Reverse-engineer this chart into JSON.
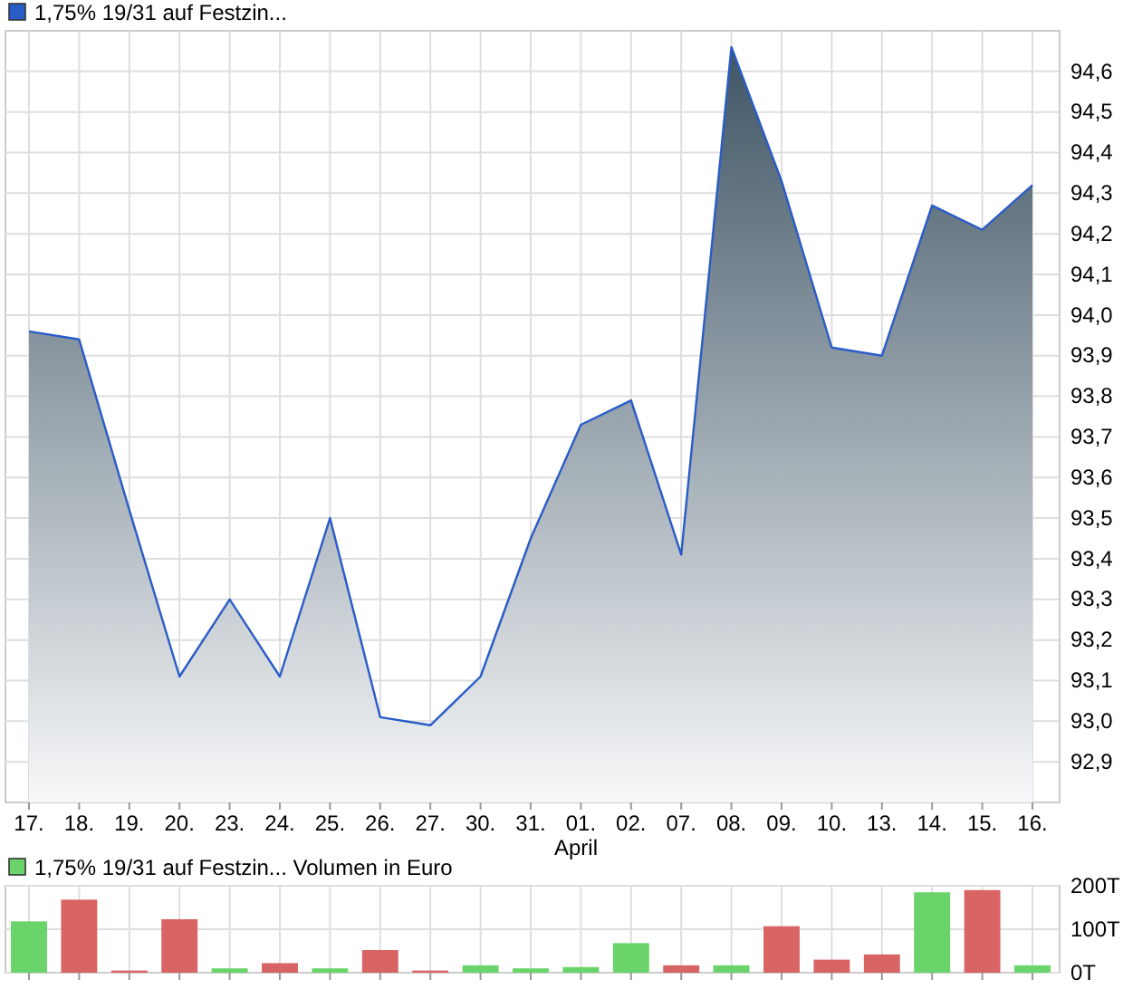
{
  "chart_data": [
    {
      "type": "area",
      "categories": [
        "17.",
        "18.",
        "19.",
        "20.",
        "23.",
        "24.",
        "25.",
        "26.",
        "27.",
        "30.",
        "31.",
        "01.",
        "02.",
        "07.",
        "08.",
        "09.",
        "10.",
        "13.",
        "14.",
        "15.",
        "16."
      ],
      "series": [
        {
          "name": "1,75% 19/31 auf Festzin...",
          "color": "#2a5cc8",
          "values": [
            93.96,
            93.94,
            93.52,
            93.11,
            93.3,
            93.11,
            93.5,
            93.01,
            92.99,
            93.11,
            93.45,
            93.73,
            93.79,
            93.41,
            94.66,
            94.33,
            93.92,
            93.9,
            94.27,
            94.21,
            94.32
          ]
        }
      ],
      "ylim": [
        92.8,
        94.7
      ],
      "yticks": [
        {
          "value": 92.9,
          "label": "92,9"
        },
        {
          "value": 93.0,
          "label": "93,0"
        },
        {
          "value": 93.1,
          "label": "93,1"
        },
        {
          "value": 93.2,
          "label": "93,2"
        },
        {
          "value": 93.3,
          "label": "93,3"
        },
        {
          "value": 93.4,
          "label": "93,4"
        },
        {
          "value": 93.5,
          "label": "93,5"
        },
        {
          "value": 93.6,
          "label": "93,6"
        },
        {
          "value": 93.7,
          "label": "93,7"
        },
        {
          "value": 93.8,
          "label": "93,8"
        },
        {
          "value": 93.9,
          "label": "93,9"
        },
        {
          "value": 94.0,
          "label": "94,0"
        },
        {
          "value": 94.1,
          "label": "94,1"
        },
        {
          "value": 94.2,
          "label": "94,2"
        },
        {
          "value": 94.3,
          "label": "94,3"
        },
        {
          "value": 94.4,
          "label": "94,4"
        },
        {
          "value": 94.5,
          "label": "94,5"
        },
        {
          "value": 94.6,
          "label": "94,6"
        }
      ],
      "annotations": [
        "April"
      ],
      "grid": true,
      "legend": "top left"
    },
    {
      "type": "bar",
      "categories": [
        "17.",
        "18.",
        "19.",
        "20.",
        "23.",
        "24.",
        "25.",
        "26.",
        "27.",
        "30.",
        "31.",
        "01.",
        "02.",
        "07.",
        "08.",
        "09.",
        "10.",
        "13.",
        "14.",
        "15.",
        "16."
      ],
      "series": [
        {
          "name": "1,75% 19/31 auf Festzin... Volumen in Euro",
          "values": [
            118,
            168,
            5,
            123,
            10,
            22,
            10,
            52,
            5,
            17,
            10,
            13,
            68,
            17,
            17,
            107,
            30,
            42,
            185,
            190,
            17
          ]
        }
      ],
      "colors": [
        "#6ad46a",
        "#d96464",
        "#d96464",
        "#d96464",
        "#6ad46a",
        "#d96464",
        "#6ad46a",
        "#d96464",
        "#d96464",
        "#6ad46a",
        "#6ad46a",
        "#6ad46a",
        "#6ad46a",
        "#d96464",
        "#6ad46a",
        "#d96464",
        "#d96464",
        "#d96464",
        "#6ad46a",
        "#d96464",
        "#6ad46a"
      ],
      "ylim": [
        0,
        200
      ],
      "yticks": [
        {
          "value": 0,
          "label": "0T"
        },
        {
          "value": 100,
          "label": "100T"
        },
        {
          "value": 200,
          "label": "200T"
        }
      ],
      "grid": true,
      "legend": "top left",
      "tick_labels": "y"
    }
  ]
}
